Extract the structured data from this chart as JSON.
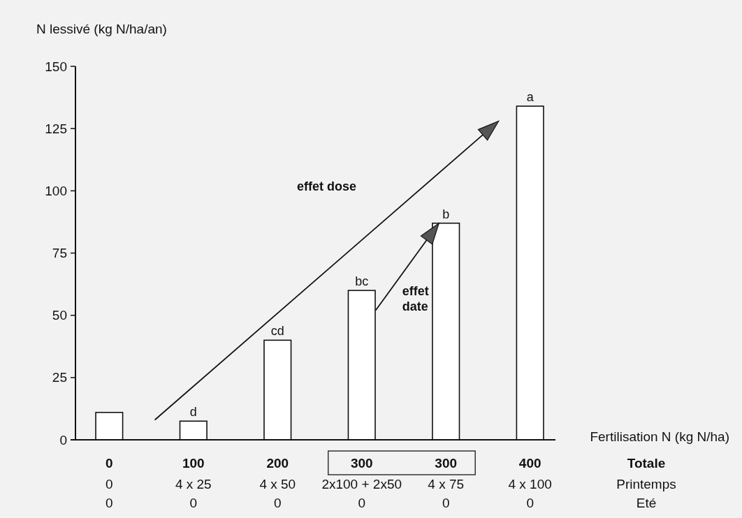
{
  "chart_data": {
    "type": "bar",
    "ylabel": "N lessivé (kg N/ha/an)",
    "xlabel": "Fertilisation N (kg N/ha)",
    "categories": [
      "0\n0\n0",
      "100\n4 x 25\n0",
      "200\n4 x 50\n0",
      "300\n2x100 + 2x50\n0",
      "300\n4 x 75\n0",
      "400\n4 x 100\n0"
    ],
    "values": [
      11,
      7.5,
      40,
      60,
      87,
      134
    ],
    "color": "#ffffff",
    "value_labels": [
      null,
      "d",
      "cd",
      "bc",
      "b",
      "a"
    ],
    "ylim": [
      0,
      150
    ],
    "yticks": [
      0,
      25,
      50,
      75,
      100,
      125,
      150
    ],
    "grid": false,
    "annotations": [
      "Totale",
      "Printemps",
      "Eté",
      "effet dose",
      "effet date"
    ]
  }
}
